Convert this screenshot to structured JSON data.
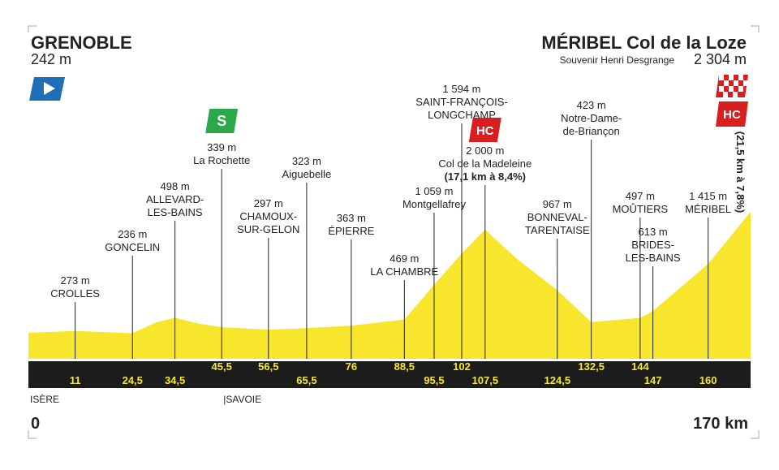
{
  "chart_data": {
    "type": "area",
    "start": {
      "name": "GRENOBLE",
      "altitude": "242 m"
    },
    "finish": {
      "name": "MÉRIBEL Col de la Loze",
      "subtitle": "Souvenir Henri Desgrange",
      "altitude": "2 304 m",
      "climb_category": "HC",
      "climb": "(21,5 km à 7,8%)"
    },
    "x": [
      0,
      11,
      24.5,
      30,
      34.5,
      40,
      45.5,
      56.5,
      65.5,
      76,
      88.5,
      95.5,
      102,
      107.5,
      115,
      124.5,
      132.5,
      144,
      147,
      160,
      170
    ],
    "values": [
      242,
      273,
      236,
      420,
      498,
      400,
      339,
      297,
      323,
      363,
      469,
      1059,
      1594,
      2000,
      1500,
      967,
      423,
      497,
      613,
      1415,
      2304
    ],
    "color": "#f7e62b",
    "xlim": [
      0,
      170
    ],
    "ylim": [
      -200,
      2800
    ],
    "xticks": [
      0,
      {
        "value": 170,
        "label": "170 km"
      }
    ],
    "waypoints": [
      {
        "km": 11,
        "altitude": "273 m",
        "name": [
          "CROLLES"
        ]
      },
      {
        "km": {
          "value": 24.5,
          "label": "24,5"
        },
        "altitude": "236 m",
        "name": [
          "GONCELIN"
        ]
      },
      {
        "km": {
          "value": 34.5,
          "label": "34,5"
        },
        "altitude": "498 m",
        "name": [
          "ALLEVARD-",
          "LES-BAINS"
        ]
      },
      {
        "km": {
          "value": 45.5,
          "label": "45,5"
        },
        "altitude": "339 m",
        "name": [
          "La Rochette"
        ],
        "sprint": "S"
      },
      {
        "km": {
          "value": 56.5,
          "label": "56,5"
        },
        "altitude": "297 m",
        "name": [
          "CHAMOUX-",
          "SUR-GELON"
        ]
      },
      {
        "km": {
          "value": 65.5,
          "label": "65,5"
        },
        "altitude": "323 m",
        "name": [
          "Aiguebelle"
        ]
      },
      {
        "km": 76,
        "altitude": "363 m",
        "name": [
          "ÉPIERRE"
        ]
      },
      {
        "km": {
          "value": 88.5,
          "label": "88,5"
        },
        "altitude": "469 m",
        "name": [
          "LA CHAMBRE"
        ]
      },
      {
        "km": {
          "value": 95.5,
          "label": "95,5"
        },
        "altitude": "1 059 m",
        "name": [
          "Montgellafrey"
        ]
      },
      {
        "km": 102,
        "altitude": "1 594 m",
        "name": [
          "SAINT-FRANÇOIS-",
          "LONGCHAMP"
        ]
      },
      {
        "km": {
          "value": 107.5,
          "label": "107,5"
        },
        "altitude": "2 000 m",
        "name": [
          "Col de la Madeleine"
        ],
        "climb": "(17,1 km à 8,4%)",
        "climb_category": "HC"
      },
      {
        "km": {
          "value": 124.5,
          "label": "124,5"
        },
        "altitude": "967 m",
        "name": [
          "BONNEVAL-",
          "TARENTAISE"
        ]
      },
      {
        "km": {
          "value": 132.5,
          "label": "132,5"
        },
        "altitude": "423 m",
        "name": [
          "Notre-Dame-",
          "de-Briançon"
        ]
      },
      {
        "km": 144,
        "altitude": "497 m",
        "name": [
          "MOÛTIERS"
        ]
      },
      {
        "km": 147,
        "altitude": "613 m",
        "name": [
          "BRIDES-",
          "LES-BAINS"
        ]
      },
      {
        "km": 160,
        "altitude": "1 415 m",
        "name": [
          "MÉRIBEL"
        ]
      }
    ],
    "regions": [
      {
        "km": 0,
        "name": "ISÈRE"
      },
      {
        "km": {
          "value": 45.5,
          "label": "45,5"
        },
        "name": "|SAVOIE"
      }
    ]
  }
}
